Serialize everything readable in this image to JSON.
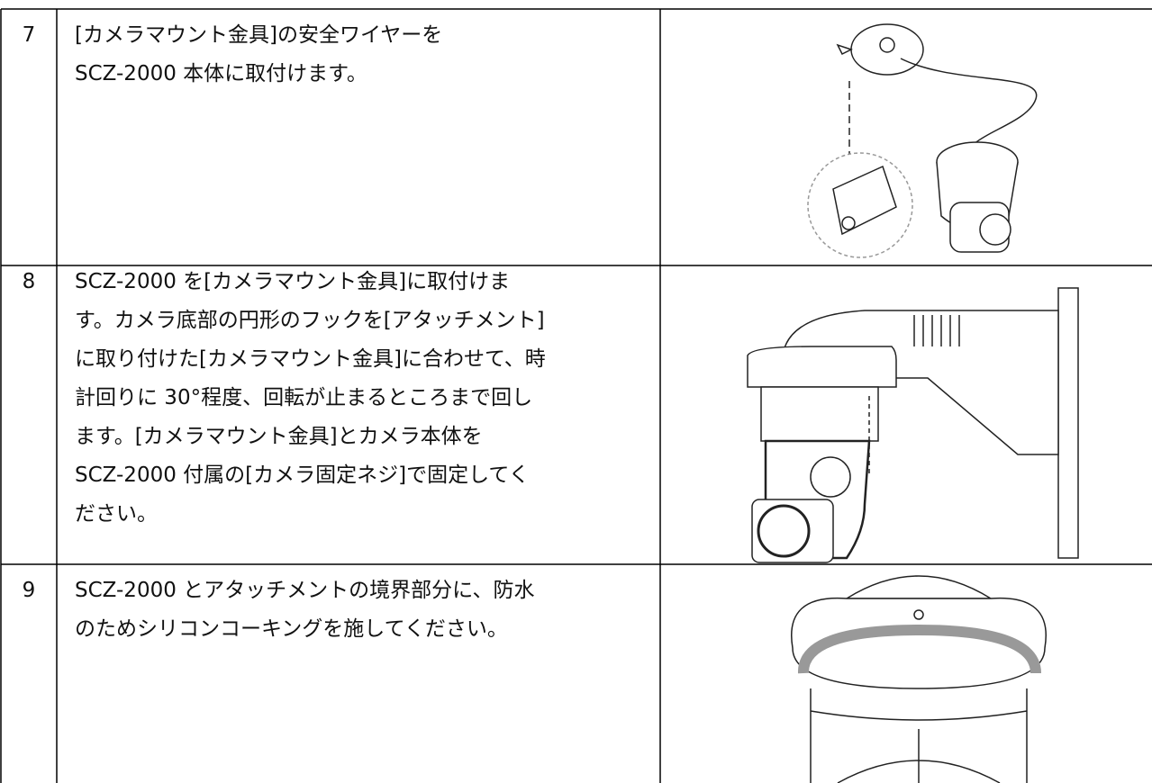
{
  "table": {
    "rows": [
      {
        "number": "7",
        "lines": [
          "[カメラマウント金具]の安全ワイヤーを",
          "SCZ-2000 本体に取付けます。"
        ]
      },
      {
        "number": "8",
        "lines": [
          "SCZ-2000 を[カメラマウント金具]に取付けま",
          "す。カメラ底部の円形のフックを[アタッチメント]",
          "に取り付けた[カメラマウント金具]に合わせて、時",
          "計回りに 30°程度、回転が止まるところまで回し",
          "ます。[カメラマウント金具]とカメラ本体を",
          "SCZ-2000 付属の[カメラ固定ネジ]で固定してく",
          "ださい。"
        ]
      },
      {
        "number": "9",
        "lines": [
          "SCZ-2000 とアタッチメントの境界部分に、防水",
          "のためシリコンコーキングを施してください。"
        ]
      }
    ]
  }
}
